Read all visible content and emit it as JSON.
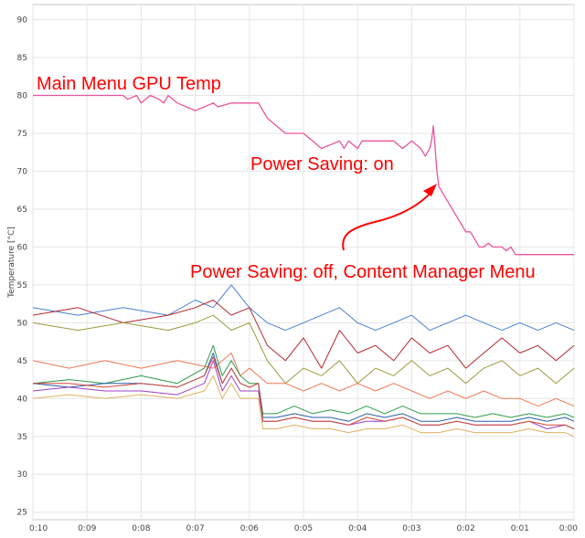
{
  "chart_data": {
    "type": "line",
    "ylabel": "Temperature [°C]",
    "ylim": [
      24,
      92
    ],
    "yticks": [
      25,
      30,
      35,
      40,
      45,
      50,
      55,
      60,
      65,
      70,
      75,
      80,
      85,
      90
    ],
    "xticks": [
      "0:10",
      "0:09",
      "0:08",
      "0:07",
      "0:06",
      "0:05",
      "0:04",
      "0:03",
      "0:02",
      "0:01",
      "0:00"
    ],
    "xlim_seconds_remaining": [
      600,
      0
    ],
    "grid": true,
    "annotations": {
      "main": "Main Menu GPU Temp",
      "on": "Power Saving: on",
      "off": "Power Saving: off, Content Manager Menu"
    },
    "series": [
      {
        "color": "#e8559c",
        "x": [
          600,
          500,
          495,
          485,
          480,
          470,
          460,
          455,
          450,
          440,
          420,
          400,
          395,
          380,
          350,
          340,
          330,
          320,
          310,
          300,
          290,
          280,
          260,
          255,
          250,
          240,
          235,
          220,
          200,
          190,
          180,
          170,
          165,
          160,
          158,
          156,
          154,
          152,
          150,
          145,
          140,
          135,
          130,
          125,
          120,
          115,
          110,
          105,
          100,
          95,
          90,
          80,
          75,
          70,
          65,
          60,
          55,
          50,
          40,
          30,
          20,
          10,
          0
        ],
        "y": [
          80,
          80,
          79.5,
          80,
          79,
          80,
          79.5,
          79,
          80,
          79,
          78,
          79,
          78.5,
          79,
          79,
          77,
          76,
          75,
          75,
          75,
          74,
          73,
          74,
          73,
          74,
          73,
          74,
          74,
          74,
          73,
          74,
          73,
          72,
          73,
          74,
          76,
          73,
          70,
          68,
          67,
          66,
          65,
          64,
          63,
          62,
          62,
          61,
          60,
          60,
          60.5,
          60,
          60,
          59.5,
          60,
          59,
          59,
          59,
          59,
          59,
          59,
          59,
          59,
          59
        ]
      },
      {
        "color": "#4a7fd6",
        "x": [
          600,
          550,
          500,
          450,
          420,
          400,
          380,
          360,
          340,
          320,
          300,
          280,
          260,
          240,
          220,
          200,
          180,
          160,
          140,
          120,
          100,
          80,
          60,
          40,
          20,
          0
        ],
        "y": [
          52,
          51,
          52,
          51,
          53,
          52,
          55,
          52,
          50,
          49,
          50,
          51,
          52,
          50,
          49,
          50,
          51,
          49,
          50,
          51,
          50,
          49,
          50,
          49,
          50,
          49
        ]
      },
      {
        "color": "#b5282e",
        "x": [
          600,
          550,
          500,
          450,
          420,
          400,
          380,
          360,
          340,
          320,
          300,
          280,
          260,
          240,
          220,
          200,
          180,
          160,
          140,
          120,
          100,
          80,
          60,
          40,
          20,
          0
        ],
        "y": [
          51,
          52,
          50,
          51,
          52,
          53,
          51,
          52,
          47,
          45,
          48,
          44,
          49,
          46,
          47,
          45,
          48,
          46,
          47,
          44,
          46,
          48,
          46,
          47,
          45,
          47
        ]
      },
      {
        "color": "#9a9a3e",
        "x": [
          600,
          550,
          500,
          450,
          420,
          400,
          380,
          360,
          340,
          320,
          300,
          280,
          260,
          240,
          220,
          200,
          180,
          160,
          140,
          120,
          100,
          80,
          60,
          40,
          20,
          0
        ],
        "y": [
          50,
          49,
          50,
          49,
          50,
          51,
          49,
          50,
          45,
          42,
          44,
          43,
          45,
          42,
          44,
          43,
          45,
          43,
          44,
          42,
          44,
          45,
          43,
          44,
          42,
          44
        ]
      },
      {
        "color": "#f07858",
        "x": [
          600,
          560,
          520,
          480,
          440,
          400,
          380,
          370,
          360,
          340,
          320,
          300,
          280,
          260,
          240,
          220,
          200,
          180,
          160,
          140,
          120,
          100,
          80,
          60,
          40,
          20,
          0
        ],
        "y": [
          45,
          44,
          45,
          44,
          45,
          44,
          46,
          43,
          44,
          42,
          42,
          41,
          42,
          41,
          42,
          41,
          42,
          41,
          40,
          41,
          40,
          41,
          40,
          40,
          39,
          40,
          39
        ]
      },
      {
        "color": "#2e9a4a",
        "x": [
          600,
          560,
          520,
          480,
          440,
          410,
          400,
          390,
          380,
          370,
          360,
          350,
          345,
          330,
          310,
          290,
          270,
          250,
          230,
          210,
          190,
          170,
          150,
          130,
          110,
          90,
          70,
          50,
          30,
          10,
          0
        ],
        "y": [
          42,
          42.5,
          42,
          43,
          42,
          44,
          47,
          43,
          45,
          43,
          42,
          42,
          38,
          38,
          39,
          38,
          38.5,
          38,
          39,
          38,
          39,
          38,
          38,
          38,
          37.5,
          38,
          37.5,
          38,
          37.5,
          38,
          37.5
        ]
      },
      {
        "color": "#2a5ea8",
        "x": [
          600,
          560,
          520,
          480,
          440,
          410,
          400,
          390,
          380,
          370,
          360,
          350,
          345,
          330,
          310,
          290,
          270,
          250,
          230,
          210,
          190,
          170,
          150,
          130,
          110,
          90,
          70,
          50,
          30,
          10,
          0
        ],
        "y": [
          42,
          41.5,
          42,
          42,
          41.5,
          43,
          46,
          42,
          44,
          42,
          41.5,
          42,
          37.5,
          37.5,
          38,
          37.5,
          37.5,
          37,
          38,
          37.5,
          38,
          37,
          37,
          37.5,
          37,
          37,
          37,
          37.5,
          37,
          37.5,
          37
        ]
      },
      {
        "color": "#a040c8",
        "x": [
          600,
          560,
          520,
          480,
          440,
          410,
          400,
          390,
          380,
          370,
          360,
          350,
          345,
          330,
          310,
          290,
          270,
          250,
          230,
          210,
          190,
          170,
          150,
          130,
          110,
          90,
          70,
          50,
          30,
          10,
          0
        ],
        "y": [
          41,
          41.5,
          41,
          41,
          40.5,
          42,
          45,
          41,
          43,
          41,
          41,
          41,
          37,
          37,
          37.5,
          37,
          37,
          36.5,
          37,
          37,
          37.5,
          36.5,
          36.5,
          37,
          36.5,
          36.5,
          36.5,
          37,
          36,
          36.5,
          36
        ]
      },
      {
        "color": "#d04838",
        "x": [
          600,
          560,
          520,
          480,
          440,
          410,
          400,
          390,
          380,
          370,
          360,
          350,
          345,
          330,
          310,
          290,
          270,
          250,
          230,
          210,
          190,
          170,
          150,
          130,
          110,
          90,
          70,
          50,
          30,
          10,
          0
        ],
        "y": [
          42,
          42,
          41.5,
          42,
          41.5,
          43,
          45.5,
          42,
          44,
          42,
          41.5,
          42,
          37,
          37,
          37.5,
          37,
          37,
          36.5,
          37.5,
          37,
          37.5,
          36.5,
          36.5,
          37,
          36.5,
          36.5,
          36.5,
          37,
          36.5,
          36.5,
          36
        ]
      },
      {
        "color": "#e0b060",
        "x": [
          600,
          560,
          520,
          480,
          440,
          410,
          400,
          390,
          380,
          370,
          360,
          350,
          345,
          330,
          310,
          290,
          270,
          250,
          230,
          210,
          190,
          170,
          150,
          130,
          110,
          90,
          70,
          50,
          30,
          10,
          0
        ],
        "y": [
          40,
          40.5,
          40,
          40.5,
          40,
          41,
          43,
          40,
          42,
          40,
          40,
          40,
          36,
          36,
          36.5,
          36,
          36,
          35.5,
          36,
          36,
          36.5,
          35.5,
          35.5,
          36,
          35.5,
          35.5,
          35.5,
          36,
          35.5,
          35.5,
          35
        ]
      }
    ]
  }
}
